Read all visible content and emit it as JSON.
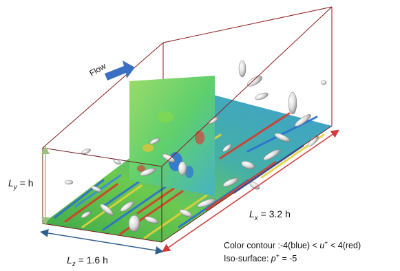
{
  "flow_label": "Flow",
  "dimensions": {
    "ly": {
      "sym": "L",
      "sub": "y",
      "rest": " = h"
    },
    "lz": {
      "sym": "L",
      "sub": "z",
      "rest": " = 1.6 h"
    },
    "lx": {
      "sym": "L",
      "sub": "x",
      "rest": " = 3.2 h"
    }
  },
  "legend": {
    "contour_prefix": "Color contour :-4(blue) < ",
    "contour_var": "u",
    "contour_sup": "+",
    "contour_suffix": " < 4(red)",
    "iso_prefix": "Iso-surface: ",
    "iso_var": "p",
    "iso_sup": "+",
    "iso_suffix": " = -5"
  },
  "colors": {
    "box_edge": "#8b1a1a",
    "ly_arrow": "#9bc27a",
    "lz_arrow": "#2f5f8f",
    "lx_arrow": "#d23a3a",
    "flow_arrow": "#3b6fc4",
    "contour_base": "#4fbf4f"
  }
}
